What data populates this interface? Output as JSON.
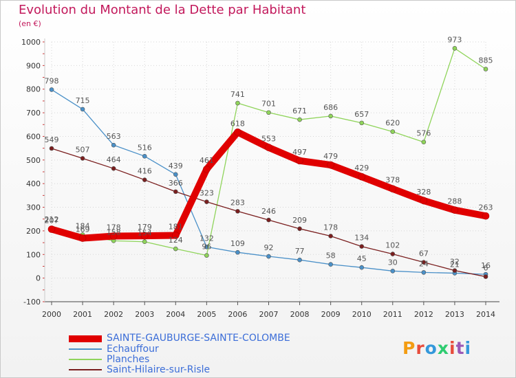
{
  "title": "Evolution du Montant de la Dette par Habitant",
  "unit": "(en €)",
  "logo": {
    "text": "Proxiti",
    "colors": [
      "#f39c12",
      "#e74c3c",
      "#3498db",
      "#2ecc71",
      "#e74c3c",
      "#9b59b6",
      "#3498db"
    ]
  },
  "chart_data": {
    "type": "line",
    "title": "Evolution du Montant de la Dette par Habitant",
    "ylabel": "(en €)",
    "xlabel": "",
    "ylim": [
      -100,
      1000
    ],
    "yticks": [
      -100,
      0,
      100,
      200,
      300,
      400,
      500,
      600,
      700,
      800,
      900,
      1000
    ],
    "x": [
      "2000",
      "2001",
      "2002",
      "2003",
      "2004",
      "2005",
      "2006",
      "2007",
      "2008",
      "2009",
      "2010",
      "2011",
      "2012",
      "2013",
      "2014"
    ],
    "grid": true,
    "legend_position": "bottom-left",
    "series": [
      {
        "name": "SAINTE-GAUBURGE-SAINTE-COLOMBE",
        "color": "#e00000",
        "width": 10,
        "labels": [
          "207",
          "169",
          "178",
          "179",
          "181",
          "461",
          "618",
          "553",
          "497",
          "479",
          "429",
          "378",
          "328",
          "288",
          "263"
        ],
        "values": [
          207,
          169,
          178,
          179,
          181,
          461,
          618,
          553,
          497,
          479,
          429,
          378,
          328,
          288,
          263
        ]
      },
      {
        "name": "Echauffour",
        "color": "#4a90c8",
        "width": 1.3,
        "labels": [
          "798",
          "715",
          "563",
          "516",
          "439",
          "132",
          "109",
          "92",
          "77",
          "58",
          "45",
          "30",
          "24",
          "21",
          "16"
        ],
        "values": [
          798,
          715,
          563,
          516,
          439,
          132,
          109,
          92,
          77,
          58,
          45,
          30,
          24,
          21,
          16
        ]
      },
      {
        "name": "Planches",
        "color": "#8fd45a",
        "width": 1.3,
        "labels": [
          "212",
          "184",
          "158",
          "154",
          "124",
          "96",
          "741",
          "701",
          "671",
          "686",
          "657",
          "620",
          "576",
          "973",
          "885"
        ],
        "values": [
          212,
          184,
          158,
          154,
          124,
          96,
          741,
          701,
          671,
          686,
          657,
          620,
          576,
          973,
          885
        ]
      },
      {
        "name": "Saint-Hilaire-sur-Risle",
        "color": "#7a1e1e",
        "width": 1.3,
        "labels": [
          "549",
          "507",
          "464",
          "416",
          "366",
          "323",
          "283",
          "246",
          "209",
          "178",
          "134",
          "102",
          "67",
          "32",
          "6"
        ],
        "values": [
          549,
          507,
          464,
          416,
          366,
          323,
          283,
          246,
          209,
          178,
          134,
          102,
          67,
          32,
          6
        ]
      }
    ]
  }
}
